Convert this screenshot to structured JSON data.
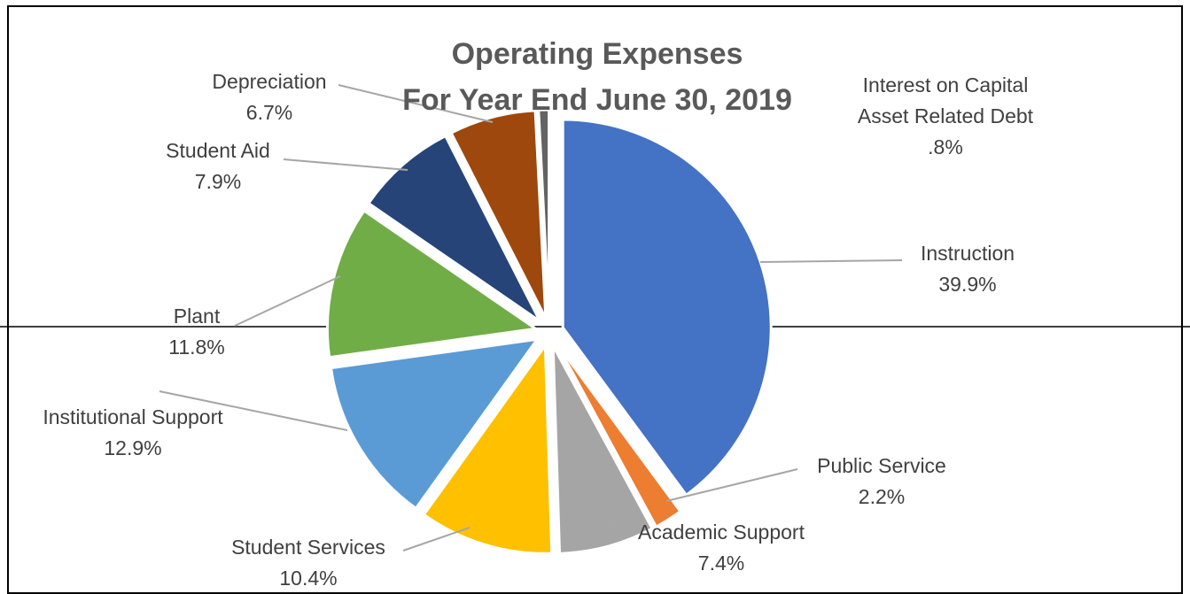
{
  "chart_data": {
    "type": "pie",
    "title": "Operating Expenses",
    "subtitle": "For Year End June 30, 2019",
    "legend": "none",
    "slices": [
      {
        "label": "Instruction",
        "label_lines": [
          "Instruction"
        ],
        "value_label": "39.9%",
        "value": 39.9,
        "color": "#4472C4"
      },
      {
        "label": "Public Service",
        "label_lines": [
          "Public Service"
        ],
        "value_label": "2.2%",
        "value": 2.2,
        "color": "#ED7D31"
      },
      {
        "label": "Academic Support",
        "label_lines": [
          "Academic Support"
        ],
        "value_label": "7.4%",
        "value": 7.4,
        "color": "#A5A5A5"
      },
      {
        "label": "Student Services",
        "label_lines": [
          "Student Services"
        ],
        "value_label": "10.4%",
        "value": 10.4,
        "color": "#FFC000"
      },
      {
        "label": "Institutional Support",
        "label_lines": [
          "Institutional Support"
        ],
        "value_label": "12.9%",
        "value": 12.9,
        "color": "#5B9BD5"
      },
      {
        "label": "Plant",
        "label_lines": [
          "Plant"
        ],
        "value_label": "11.8%",
        "value": 11.8,
        "color": "#70AD47"
      },
      {
        "label": "Student Aid",
        "label_lines": [
          "Student Aid"
        ],
        "value_label": "7.9%",
        "value": 7.9,
        "color": "#264478"
      },
      {
        "label": "Depreciation",
        "label_lines": [
          "Depreciation"
        ],
        "value_label": "6.7%",
        "value": 6.7,
        "color": "#9E480E"
      },
      {
        "label": "Interest on Capital Asset Related Debt",
        "label_lines": [
          "Interest on Capital",
          "Asset Related  Debt"
        ],
        "value_label": ".8%",
        "value": 0.8,
        "color": "#636363"
      }
    ]
  }
}
